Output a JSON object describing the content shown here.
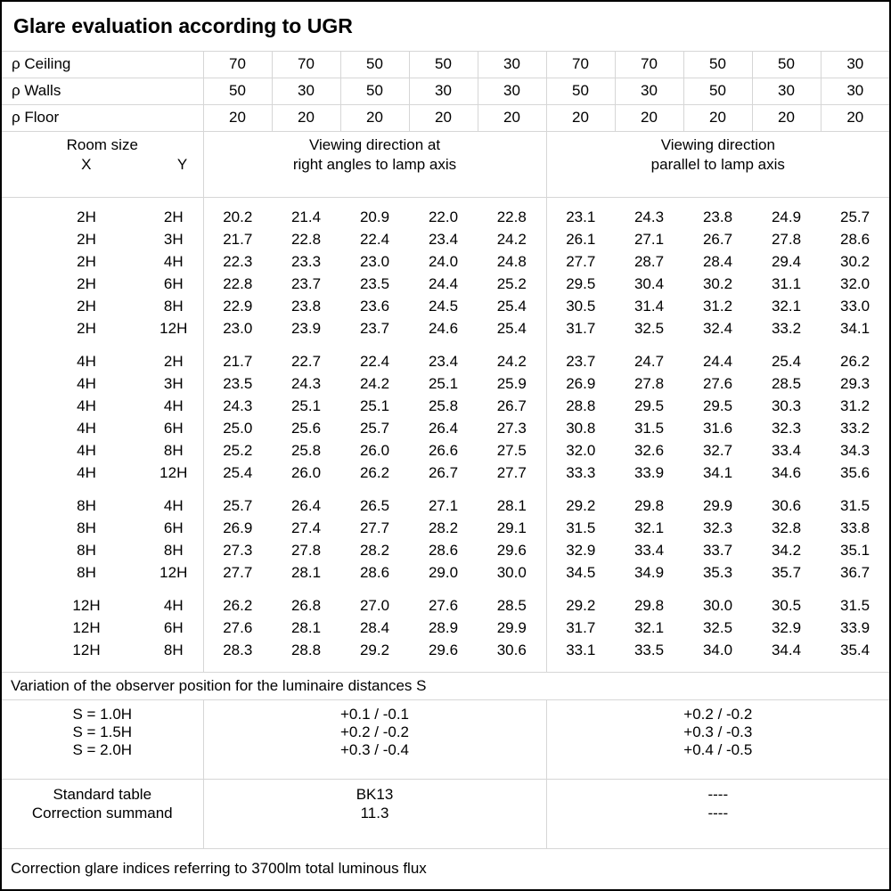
{
  "title": "Glare evaluation according to UGR",
  "reflectance": {
    "rows": [
      {
        "label": "ρ Ceiling",
        "values": [
          "70",
          "70",
          "50",
          "50",
          "30",
          "70",
          "70",
          "50",
          "50",
          "30"
        ]
      },
      {
        "label": "ρ Walls",
        "values": [
          "50",
          "30",
          "50",
          "30",
          "30",
          "50",
          "30",
          "50",
          "30",
          "30"
        ]
      },
      {
        "label": "ρ Floor",
        "values": [
          "20",
          "20",
          "20",
          "20",
          "20",
          "20",
          "20",
          "20",
          "20",
          "20"
        ]
      }
    ]
  },
  "table_header": {
    "room_size": "Room size",
    "x": "X",
    "y": "Y",
    "group_right_angles": {
      "line1": "Viewing direction at",
      "line2": "right angles to lamp axis"
    },
    "group_parallel": {
      "line1": "Viewing direction",
      "line2": "parallel to lamp axis"
    }
  },
  "ugr_table": {
    "blocks": [
      {
        "rows": [
          {
            "x": "2H",
            "y": "2H",
            "values": [
              "20.2",
              "21.4",
              "20.9",
              "22.0",
              "22.8",
              "23.1",
              "24.3",
              "23.8",
              "24.9",
              "25.7"
            ]
          },
          {
            "x": "2H",
            "y": "3H",
            "values": [
              "21.7",
              "22.8",
              "22.4",
              "23.4",
              "24.2",
              "26.1",
              "27.1",
              "26.7",
              "27.8",
              "28.6"
            ]
          },
          {
            "x": "2H",
            "y": "4H",
            "values": [
              "22.3",
              "23.3",
              "23.0",
              "24.0",
              "24.8",
              "27.7",
              "28.7",
              "28.4",
              "29.4",
              "30.2"
            ]
          },
          {
            "x": "2H",
            "y": "6H",
            "values": [
              "22.8",
              "23.7",
              "23.5",
              "24.4",
              "25.2",
              "29.5",
              "30.4",
              "30.2",
              "31.1",
              "32.0"
            ]
          },
          {
            "x": "2H",
            "y": "8H",
            "values": [
              "22.9",
              "23.8",
              "23.6",
              "24.5",
              "25.4",
              "30.5",
              "31.4",
              "31.2",
              "32.1",
              "33.0"
            ]
          },
          {
            "x": "2H",
            "y": "12H",
            "values": [
              "23.0",
              "23.9",
              "23.7",
              "24.6",
              "25.4",
              "31.7",
              "32.5",
              "32.4",
              "33.2",
              "34.1"
            ]
          }
        ]
      },
      {
        "rows": [
          {
            "x": "4H",
            "y": "2H",
            "values": [
              "21.7",
              "22.7",
              "22.4",
              "23.4",
              "24.2",
              "23.7",
              "24.7",
              "24.4",
              "25.4",
              "26.2"
            ]
          },
          {
            "x": "4H",
            "y": "3H",
            "values": [
              "23.5",
              "24.3",
              "24.2",
              "25.1",
              "25.9",
              "26.9",
              "27.8",
              "27.6",
              "28.5",
              "29.3"
            ]
          },
          {
            "x": "4H",
            "y": "4H",
            "values": [
              "24.3",
              "25.1",
              "25.1",
              "25.8",
              "26.7",
              "28.8",
              "29.5",
              "29.5",
              "30.3",
              "31.2"
            ]
          },
          {
            "x": "4H",
            "y": "6H",
            "values": [
              "25.0",
              "25.6",
              "25.7",
              "26.4",
              "27.3",
              "30.8",
              "31.5",
              "31.6",
              "32.3",
              "33.2"
            ]
          },
          {
            "x": "4H",
            "y": "8H",
            "values": [
              "25.2",
              "25.8",
              "26.0",
              "26.6",
              "27.5",
              "32.0",
              "32.6",
              "32.7",
              "33.4",
              "34.3"
            ]
          },
          {
            "x": "4H",
            "y": "12H",
            "values": [
              "25.4",
              "26.0",
              "26.2",
              "26.7",
              "27.7",
              "33.3",
              "33.9",
              "34.1",
              "34.6",
              "35.6"
            ]
          }
        ]
      },
      {
        "rows": [
          {
            "x": "8H",
            "y": "4H",
            "values": [
              "25.7",
              "26.4",
              "26.5",
              "27.1",
              "28.1",
              "29.2",
              "29.8",
              "29.9",
              "30.6",
              "31.5"
            ]
          },
          {
            "x": "8H",
            "y": "6H",
            "values": [
              "26.9",
              "27.4",
              "27.7",
              "28.2",
              "29.1",
              "31.5",
              "32.1",
              "32.3",
              "32.8",
              "33.8"
            ]
          },
          {
            "x": "8H",
            "y": "8H",
            "values": [
              "27.3",
              "27.8",
              "28.2",
              "28.6",
              "29.6",
              "32.9",
              "33.4",
              "33.7",
              "34.2",
              "35.1"
            ]
          },
          {
            "x": "8H",
            "y": "12H",
            "values": [
              "27.7",
              "28.1",
              "28.6",
              "29.0",
              "30.0",
              "34.5",
              "34.9",
              "35.3",
              "35.7",
              "36.7"
            ]
          }
        ]
      },
      {
        "rows": [
          {
            "x": "12H",
            "y": "4H",
            "values": [
              "26.2",
              "26.8",
              "27.0",
              "27.6",
              "28.5",
              "29.2",
              "29.8",
              "30.0",
              "30.5",
              "31.5"
            ]
          },
          {
            "x": "12H",
            "y": "6H",
            "values": [
              "27.6",
              "28.1",
              "28.4",
              "28.9",
              "29.9",
              "31.7",
              "32.1",
              "32.5",
              "32.9",
              "33.9"
            ]
          },
          {
            "x": "12H",
            "y": "8H",
            "values": [
              "28.3",
              "28.8",
              "29.2",
              "29.6",
              "30.6",
              "33.1",
              "33.5",
              "34.0",
              "34.4",
              "35.4"
            ]
          }
        ]
      }
    ]
  },
  "variation": {
    "note": "Variation of the observer position for the luminaire distances S",
    "rows": [
      {
        "label": "S = 1.0H",
        "right_angles": "+0.1 / -0.1",
        "parallel": "+0.2 / -0.2"
      },
      {
        "label": "S = 1.5H",
        "right_angles": "+0.2 / -0.2",
        "parallel": "+0.3 / -0.3"
      },
      {
        "label": "S = 2.0H",
        "right_angles": "+0.3 / -0.4",
        "parallel": "+0.4 / -0.5"
      }
    ]
  },
  "summary": {
    "rows": [
      {
        "label": "Standard table",
        "right_angles": "BK13",
        "parallel": "----"
      },
      {
        "label": "Correction summand",
        "right_angles": "11.3",
        "parallel": "----"
      }
    ]
  },
  "footer": "Correction glare indices referring to 3700lm total luminous flux"
}
